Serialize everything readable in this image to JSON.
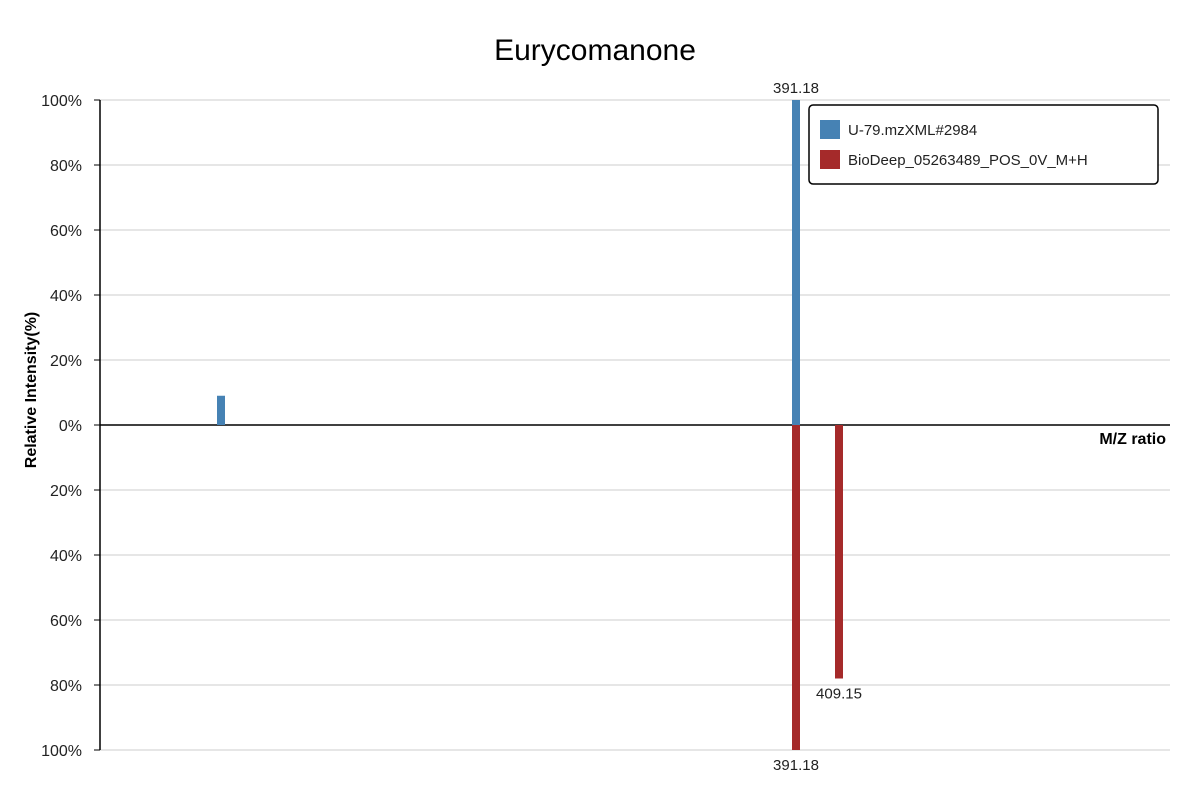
{
  "chart_data": {
    "type": "bar",
    "title": "Eurycomanone",
    "xlabel": "M/Z ratio",
    "ylabel": "Relative Intensity(%)",
    "y_ticks_top": [
      "100%",
      "80%",
      "60%",
      "40%",
      "20%",
      "0%"
    ],
    "y_ticks_bottom": [
      "20%",
      "40%",
      "60%",
      "80%",
      "100%"
    ],
    "ylim": [
      -100,
      100
    ],
    "grid": true,
    "legend_position": "top-right",
    "series": [
      {
        "name": "U-79.mzXML#2984",
        "color": "#4682b4",
        "direction": "up",
        "peaks": [
          {
            "mz": 220,
            "intensity": 9,
            "label": ""
          },
          {
            "mz": 391.18,
            "intensity": 100,
            "label": "391.18"
          }
        ]
      },
      {
        "name": "BioDeep_05263489_POS_0V_M+H",
        "color": "#a52a2a",
        "direction": "down",
        "peaks": [
          {
            "mz": 391.18,
            "intensity": 100,
            "label": "391.18"
          },
          {
            "mz": 409.15,
            "intensity": 78,
            "label": "409.15"
          }
        ]
      }
    ]
  }
}
